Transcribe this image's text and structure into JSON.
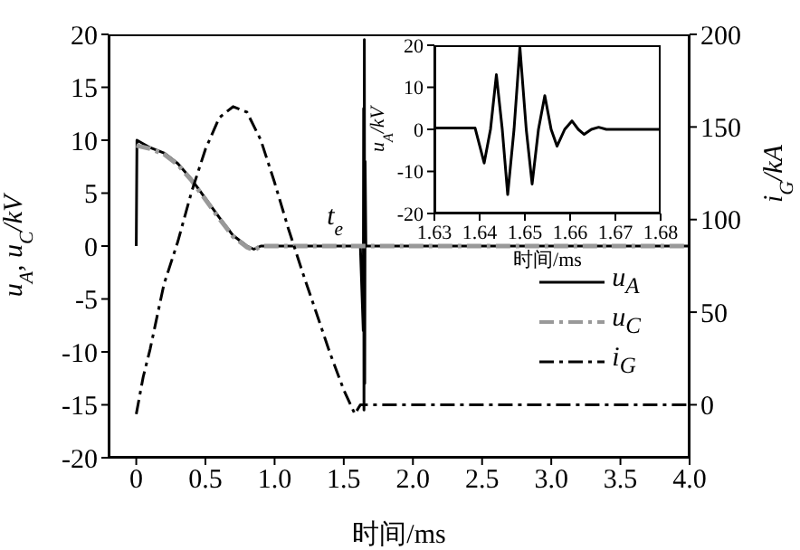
{
  "chart_data": [
    {
      "type": "line",
      "xlabel": "时间/ms",
      "ylabel": "u$_{A}$, u$_{C}$/kV",
      "y2label": "i$_{G}$/kA",
      "xlim": [
        -0.2,
        4.0
      ],
      "xticks": [
        0,
        0.5,
        {
          "value": 1,
          "label": "1.0"
        },
        1.5,
        {
          "value": 2,
          "label": "2.0"
        },
        2.5,
        {
          "value": 3,
          "label": "3.0"
        },
        3.5,
        {
          "value": 4,
          "label": "4.0"
        }
      ],
      "ylim": [
        -20,
        20
      ],
      "yticks": [
        -20,
        -15,
        -10,
        -5,
        0,
        5,
        10,
        15,
        20
      ],
      "y2lim": [
        -28.6,
        200
      ],
      "y2ticks": [
        0,
        50,
        100,
        150,
        200
      ],
      "grid": false,
      "legend": "right",
      "annotations": [
        {
          "text": "t$_{e}$",
          "x": 1.62,
          "y": 0
        }
      ],
      "series": [
        {
          "name": "u$_{A}$",
          "color": "#000000",
          "line_style": "solid",
          "x": [
            0,
            0.005,
            0.1,
            0.2,
            0.3,
            0.4,
            0.5,
            0.6,
            0.7,
            0.8,
            0.85,
            0.9,
            1.62,
            1.641,
            1.6437,
            1.6462,
            1.6489,
            1.6516,
            1.6544,
            1.66,
            4.0
          ],
          "values": [
            0,
            10,
            9.3,
            8.8,
            7.8,
            6.3,
            4.5,
            2.7,
            1.0,
            0,
            -0.3,
            0,
            0,
            -8,
            13,
            -15.5,
            19.5,
            -13,
            8,
            0,
            0
          ]
        },
        {
          "name": "u$_{C}$",
          "color": "#999999",
          "line_style": "dashed",
          "x": [
            0,
            0.1,
            0.2,
            0.3,
            0.4,
            0.5,
            0.6,
            0.7,
            0.8,
            0.85,
            0.9,
            4.0
          ],
          "values": [
            9.5,
            9.2,
            8.7,
            7.7,
            6.2,
            4.4,
            2.6,
            0.9,
            -0.1,
            -0.4,
            0,
            0
          ]
        },
        {
          "name": "i$_{G}$",
          "color": "#000000",
          "line_style": "dashed",
          "axis": "y2",
          "x": [
            0,
            0.05,
            0.1,
            0.2,
            0.3,
            0.4,
            0.5,
            0.6,
            0.7,
            0.8,
            0.9,
            1.0,
            1.1,
            1.2,
            1.3,
            1.4,
            1.5,
            1.58,
            1.62,
            4.0
          ],
          "values": [
            -5,
            15,
            30,
            65,
            88,
            115,
            138,
            155,
            161,
            158,
            143,
            120,
            95,
            72,
            50,
            28,
            8,
            -5,
            0,
            0
          ]
        }
      ]
    },
    {
      "type": "line",
      "xlabel": "时间/ms",
      "ylabel": "u$_{A}$/kV",
      "xlim": [
        1.63,
        1.68
      ],
      "xticks": [
        1.63,
        1.64,
        1.65,
        1.66,
        1.67,
        1.68
      ],
      "ylim": [
        -20,
        20
      ],
      "yticks": [
        -20,
        -10,
        0,
        10,
        20
      ],
      "grid": false,
      "legend": false,
      "series": [
        {
          "color": "#000000",
          "line_style": "solid",
          "x": [
            1.63,
            1.639,
            1.641,
            1.6424,
            1.6437,
            1.645,
            1.6462,
            1.6476,
            1.6489,
            1.6503,
            1.6516,
            1.653,
            1.6544,
            1.6558,
            1.6571,
            1.6588,
            1.6604,
            1.6618,
            1.6631,
            1.6647,
            1.6663,
            1.668,
            1.68
          ],
          "values": [
            0.3,
            0.3,
            -8,
            0,
            13,
            0,
            -15.5,
            0,
            19.5,
            0,
            -13,
            0,
            8,
            0,
            -4,
            0,
            2,
            0,
            -1.2,
            0,
            0.5,
            0,
            0
          ]
        }
      ]
    }
  ]
}
